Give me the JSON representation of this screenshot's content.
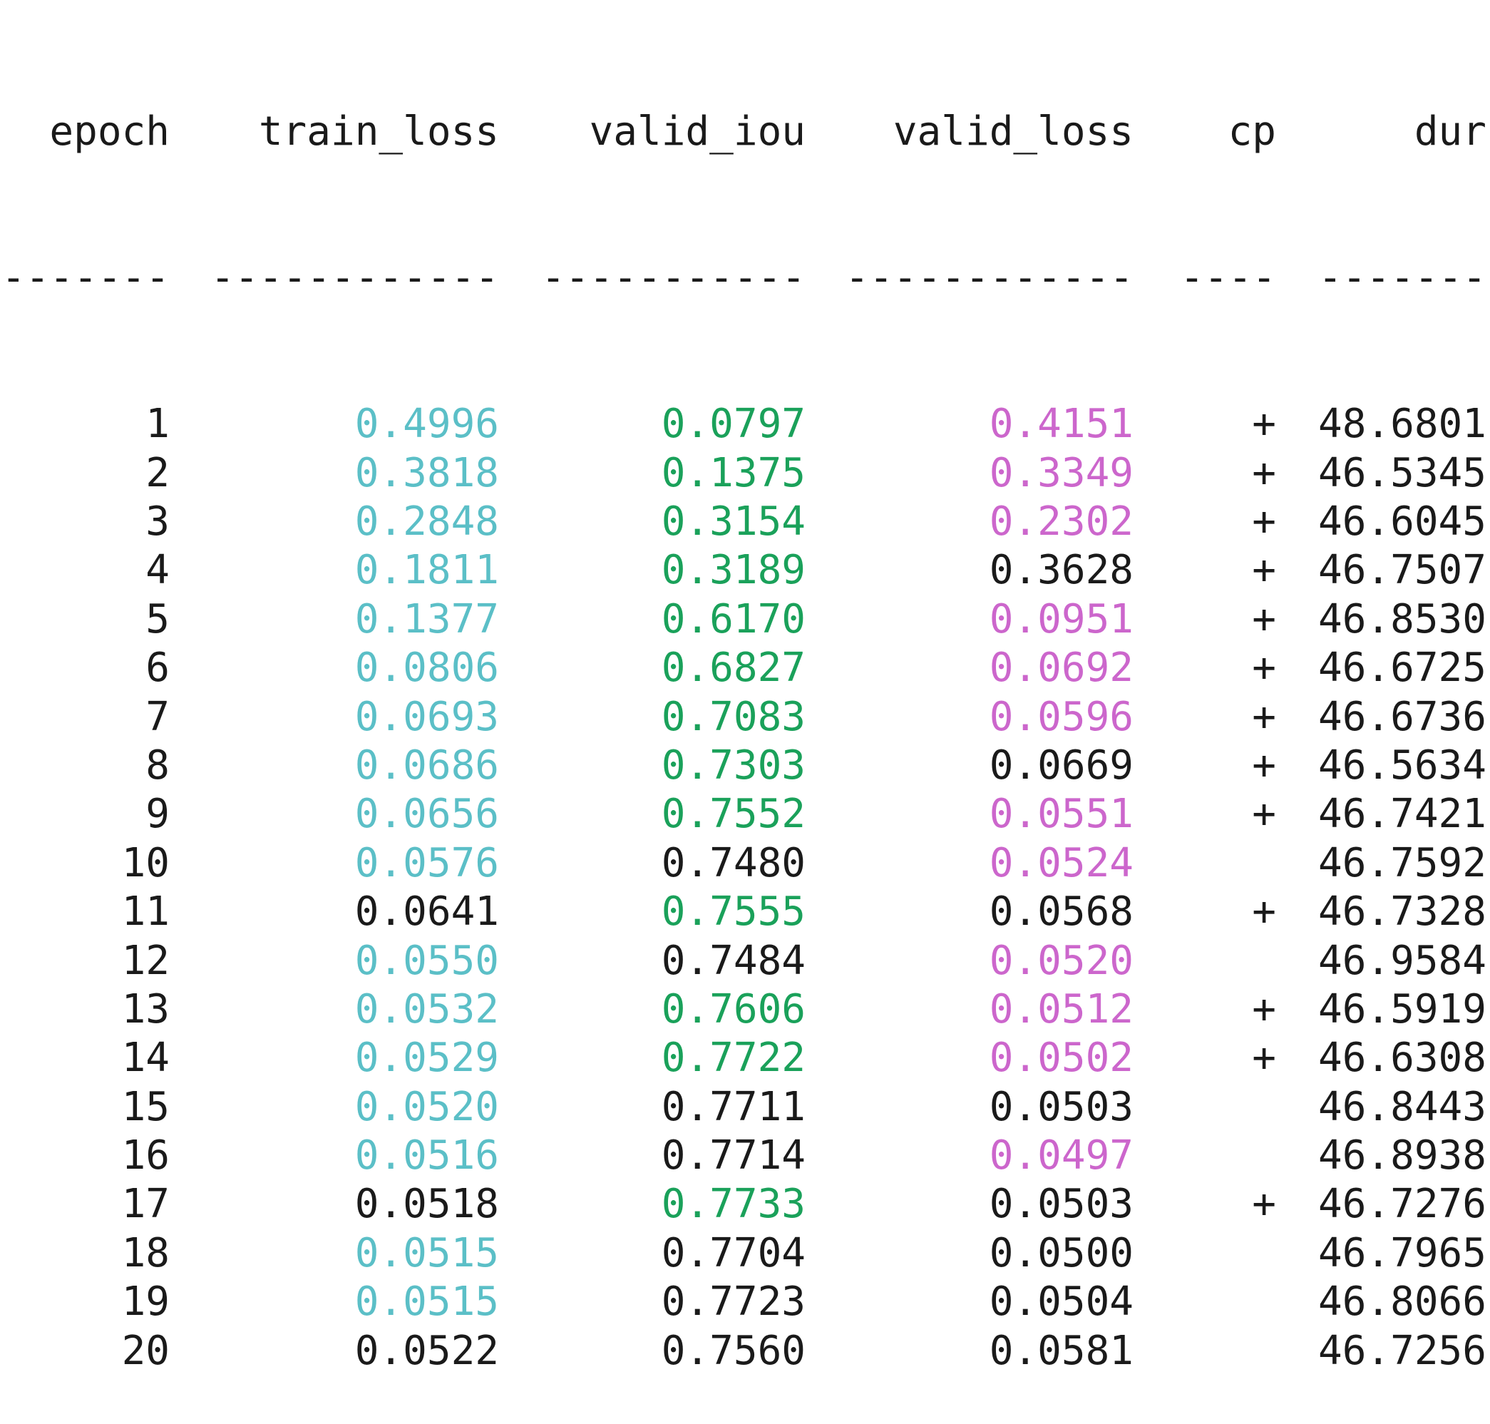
{
  "colors": {
    "train_loss_best": "#5bbfc7",
    "valid_iou_best": "#1aa15a",
    "valid_loss_best": "#cc66cc",
    "default_text": "#1a1a1a",
    "background": "#ffffff"
  },
  "table": {
    "headers": {
      "epoch": "epoch",
      "train_loss": "train_loss",
      "valid_iou": "valid_iou",
      "valid_loss": "valid_loss",
      "cp": "cp",
      "dur": "dur"
    },
    "separators": {
      "epoch": "-------",
      "train_loss": "------------",
      "valid_iou": "-----------",
      "valid_loss": "------------",
      "cp": "----",
      "dur": "-------"
    },
    "rows": [
      {
        "epoch": "1",
        "train_loss": "0.4996",
        "train_best": true,
        "valid_iou": "0.0797",
        "iou_best": true,
        "valid_loss": "0.4151",
        "vloss_best": true,
        "cp": "+",
        "dur": "48.6801"
      },
      {
        "epoch": "2",
        "train_loss": "0.3818",
        "train_best": true,
        "valid_iou": "0.1375",
        "iou_best": true,
        "valid_loss": "0.3349",
        "vloss_best": true,
        "cp": "+",
        "dur": "46.5345"
      },
      {
        "epoch": "3",
        "train_loss": "0.2848",
        "train_best": true,
        "valid_iou": "0.3154",
        "iou_best": true,
        "valid_loss": "0.2302",
        "vloss_best": true,
        "cp": "+",
        "dur": "46.6045"
      },
      {
        "epoch": "4",
        "train_loss": "0.1811",
        "train_best": true,
        "valid_iou": "0.3189",
        "iou_best": true,
        "valid_loss": "0.3628",
        "vloss_best": false,
        "cp": "+",
        "dur": "46.7507"
      },
      {
        "epoch": "5",
        "train_loss": "0.1377",
        "train_best": true,
        "valid_iou": "0.6170",
        "iou_best": true,
        "valid_loss": "0.0951",
        "vloss_best": true,
        "cp": "+",
        "dur": "46.8530"
      },
      {
        "epoch": "6",
        "train_loss": "0.0806",
        "train_best": true,
        "valid_iou": "0.6827",
        "iou_best": true,
        "valid_loss": "0.0692",
        "vloss_best": true,
        "cp": "+",
        "dur": "46.6725"
      },
      {
        "epoch": "7",
        "train_loss": "0.0693",
        "train_best": true,
        "valid_iou": "0.7083",
        "iou_best": true,
        "valid_loss": "0.0596",
        "vloss_best": true,
        "cp": "+",
        "dur": "46.6736"
      },
      {
        "epoch": "8",
        "train_loss": "0.0686",
        "train_best": true,
        "valid_iou": "0.7303",
        "iou_best": true,
        "valid_loss": "0.0669",
        "vloss_best": false,
        "cp": "+",
        "dur": "46.5634"
      },
      {
        "epoch": "9",
        "train_loss": "0.0656",
        "train_best": true,
        "valid_iou": "0.7552",
        "iou_best": true,
        "valid_loss": "0.0551",
        "vloss_best": true,
        "cp": "+",
        "dur": "46.7421"
      },
      {
        "epoch": "10",
        "train_loss": "0.0576",
        "train_best": true,
        "valid_iou": "0.7480",
        "iou_best": false,
        "valid_loss": "0.0524",
        "vloss_best": true,
        "cp": "",
        "dur": "46.7592"
      },
      {
        "epoch": "11",
        "train_loss": "0.0641",
        "train_best": false,
        "valid_iou": "0.7555",
        "iou_best": true,
        "valid_loss": "0.0568",
        "vloss_best": false,
        "cp": "+",
        "dur": "46.7328"
      },
      {
        "epoch": "12",
        "train_loss": "0.0550",
        "train_best": true,
        "valid_iou": "0.7484",
        "iou_best": false,
        "valid_loss": "0.0520",
        "vloss_best": true,
        "cp": "",
        "dur": "46.9584"
      },
      {
        "epoch": "13",
        "train_loss": "0.0532",
        "train_best": true,
        "valid_iou": "0.7606",
        "iou_best": true,
        "valid_loss": "0.0512",
        "vloss_best": true,
        "cp": "+",
        "dur": "46.5919"
      },
      {
        "epoch": "14",
        "train_loss": "0.0529",
        "train_best": true,
        "valid_iou": "0.7722",
        "iou_best": true,
        "valid_loss": "0.0502",
        "vloss_best": true,
        "cp": "+",
        "dur": "46.6308"
      },
      {
        "epoch": "15",
        "train_loss": "0.0520",
        "train_best": true,
        "valid_iou": "0.7711",
        "iou_best": false,
        "valid_loss": "0.0503",
        "vloss_best": false,
        "cp": "",
        "dur": "46.8443"
      },
      {
        "epoch": "16",
        "train_loss": "0.0516",
        "train_best": true,
        "valid_iou": "0.7714",
        "iou_best": false,
        "valid_loss": "0.0497",
        "vloss_best": true,
        "cp": "",
        "dur": "46.8938"
      },
      {
        "epoch": "17",
        "train_loss": "0.0518",
        "train_best": false,
        "valid_iou": "0.7733",
        "iou_best": true,
        "valid_loss": "0.0503",
        "vloss_best": false,
        "cp": "+",
        "dur": "46.7276"
      },
      {
        "epoch": "18",
        "train_loss": "0.0515",
        "train_best": true,
        "valid_iou": "0.7704",
        "iou_best": false,
        "valid_loss": "0.0500",
        "vloss_best": false,
        "cp": "",
        "dur": "46.7965"
      },
      {
        "epoch": "19",
        "train_loss": "0.0515",
        "train_best": true,
        "valid_iou": "0.7723",
        "iou_best": false,
        "valid_loss": "0.0504",
        "vloss_best": false,
        "cp": "",
        "dur": "46.8066"
      },
      {
        "epoch": "20",
        "train_loss": "0.0522",
        "train_best": false,
        "valid_iou": "0.7560",
        "iou_best": false,
        "valid_loss": "0.0581",
        "vloss_best": false,
        "cp": "",
        "dur": "46.7256"
      }
    ]
  }
}
